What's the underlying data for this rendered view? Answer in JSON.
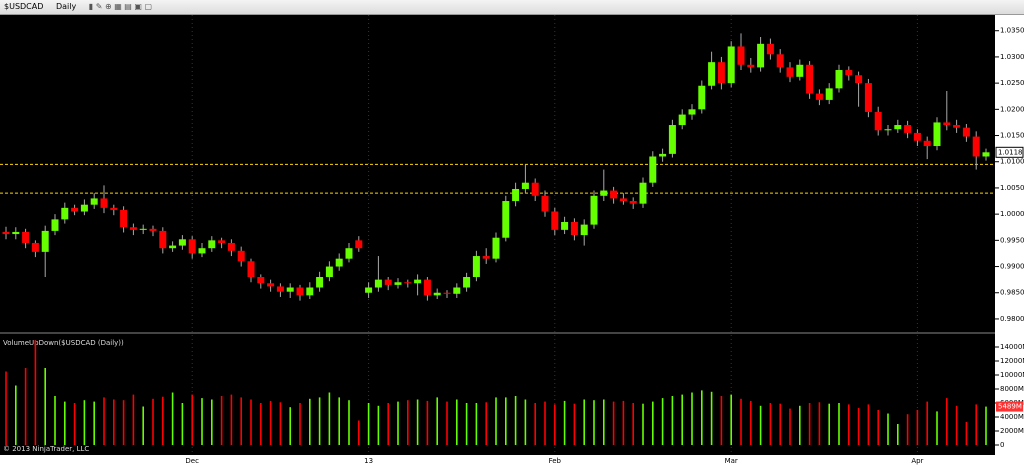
{
  "toolbar": {
    "symbol": "$USDCAD",
    "interval": "Daily"
  },
  "copyright": "© 2013 NinjaTrader, LLC",
  "chart_data": [
    {
      "type": "candlestick",
      "categories": [
        null,
        null,
        null,
        null,
        null,
        null,
        null,
        null,
        null,
        null,
        null,
        null,
        null,
        null,
        null,
        null,
        null,
        null,
        null,
        "Dec",
        null,
        null,
        null,
        null,
        null,
        null,
        null,
        null,
        null,
        null,
        null,
        null,
        null,
        null,
        null,
        null,
        null,
        "13",
        null,
        null,
        null,
        null,
        null,
        null,
        null,
        null,
        null,
        null,
        null,
        null,
        null,
        null,
        null,
        null,
        null,
        null,
        "Feb",
        null,
        null,
        null,
        null,
        null,
        null,
        null,
        null,
        null,
        null,
        null,
        null,
        null,
        null,
        null,
        null,
        null,
        "Mar",
        null,
        null,
        null,
        null,
        null,
        null,
        null,
        null,
        null,
        null,
        null,
        null,
        null,
        null,
        null,
        null,
        null,
        null,
        "Apr",
        null,
        null,
        null,
        null,
        null,
        null,
        null
      ],
      "ohlc": [
        [
          0.9966,
          0.9976,
          0.9952,
          0.9962
        ],
        [
          0.9962,
          0.9975,
          0.9952,
          0.9966
        ],
        [
          0.9966,
          0.9972,
          0.9935,
          0.9945
        ],
        [
          0.9945,
          0.995,
          0.9918,
          0.9928
        ],
        [
          0.9928,
          0.9978,
          0.988,
          0.9968
        ],
        [
          0.9968,
          1.0,
          0.996,
          0.999
        ],
        [
          0.999,
          1.0022,
          0.9982,
          1.0012
        ],
        [
          1.0012,
          1.0018,
          0.9998,
          1.0005
        ],
        [
          1.0005,
          1.0028,
          0.9998,
          1.0018
        ],
        [
          1.0018,
          1.004,
          1.001,
          1.003
        ],
        [
          1.003,
          1.0055,
          1.0002,
          1.0012
        ],
        [
          1.0012,
          1.0018,
          0.9998,
          1.0008
        ],
        [
          1.0008,
          1.0015,
          0.9965,
          0.9975
        ],
        [
          0.9975,
          0.9982,
          0.996,
          0.997
        ],
        [
          0.997,
          0.998,
          0.9962,
          0.9972
        ],
        [
          0.9972,
          0.9978,
          0.9958,
          0.9968
        ],
        [
          0.9968,
          0.9975,
          0.9925,
          0.9935
        ],
        [
          0.9935,
          0.9948,
          0.9928,
          0.994
        ],
        [
          0.994,
          0.996,
          0.9932,
          0.9952
        ],
        [
          0.9952,
          0.9958,
          0.9915,
          0.9925
        ],
        [
          0.9925,
          0.9945,
          0.9918,
          0.9935
        ],
        [
          0.9935,
          0.9958,
          0.9928,
          0.995
        ],
        [
          0.995,
          0.9955,
          0.9935,
          0.9945
        ],
        [
          0.9945,
          0.9952,
          0.992,
          0.993
        ],
        [
          0.993,
          0.9938,
          0.99,
          0.991
        ],
        [
          0.991,
          0.9915,
          0.987,
          0.988
        ],
        [
          0.988,
          0.9885,
          0.9858,
          0.9868
        ],
        [
          0.9868,
          0.9875,
          0.9852,
          0.9862
        ],
        [
          0.9862,
          0.9868,
          0.9842,
          0.9852
        ],
        [
          0.9852,
          0.9868,
          0.984,
          0.986
        ],
        [
          0.986,
          0.9865,
          0.9835,
          0.9845
        ],
        [
          0.9845,
          0.987,
          0.9838,
          0.986
        ],
        [
          0.986,
          0.989,
          0.9852,
          0.988
        ],
        [
          0.988,
          0.991,
          0.9872,
          0.99
        ],
        [
          0.99,
          0.9925,
          0.9892,
          0.9915
        ],
        [
          0.9915,
          0.9945,
          0.9908,
          0.9935
        ],
        [
          0.995,
          0.9958,
          0.9928,
          0.9935
        ],
        [
          0.985,
          0.987,
          0.984,
          0.986
        ],
        [
          0.986,
          0.992,
          0.9852,
          0.9875
        ],
        [
          0.9875,
          0.988,
          0.9855,
          0.9865
        ],
        [
          0.9865,
          0.9878,
          0.9858,
          0.987
        ],
        [
          0.987,
          0.9875,
          0.986,
          0.9868
        ],
        [
          0.9868,
          0.9885,
          0.9845,
          0.9875
        ],
        [
          0.9875,
          0.988,
          0.9835,
          0.9845
        ],
        [
          0.9845,
          0.9858,
          0.9838,
          0.985
        ],
        [
          0.985,
          0.9855,
          0.984,
          0.9848
        ],
        [
          0.9848,
          0.9868,
          0.984,
          0.986
        ],
        [
          0.986,
          0.9888,
          0.9852,
          0.988
        ],
        [
          0.988,
          0.993,
          0.9872,
          0.992
        ],
        [
          0.992,
          0.9935,
          0.9905,
          0.9915
        ],
        [
          0.9915,
          0.9965,
          0.9908,
          0.9955
        ],
        [
          0.9955,
          1.0035,
          0.9948,
          1.0025
        ],
        [
          1.0025,
          1.006,
          1.0015,
          1.0048
        ],
        [
          1.0048,
          1.0095,
          1.004,
          1.006
        ],
        [
          1.006,
          1.0068,
          1.0025,
          1.0035
        ],
        [
          1.0035,
          1.0045,
          0.9995,
          1.0005
        ],
        [
          1.0005,
          1.0012,
          0.996,
          0.997
        ],
        [
          0.997,
          0.9995,
          0.9962,
          0.9985
        ],
        [
          0.9985,
          0.9992,
          0.995,
          0.996
        ],
        [
          0.996,
          0.999,
          0.994,
          0.998
        ],
        [
          0.998,
          1.0045,
          0.9972,
          1.0035
        ],
        [
          1.0035,
          1.0085,
          1.0025,
          1.0045
        ],
        [
          1.0045,
          1.0052,
          1.002,
          1.003
        ],
        [
          1.003,
          1.004,
          1.0018,
          1.0025
        ],
        [
          1.0025,
          1.0032,
          1.001,
          1.002
        ],
        [
          1.002,
          1.007,
          1.0012,
          1.006
        ],
        [
          1.006,
          1.012,
          1.0052,
          1.011
        ],
        [
          1.011,
          1.0125,
          1.01,
          1.0115
        ],
        [
          1.0115,
          1.018,
          1.0108,
          1.017
        ],
        [
          1.017,
          1.02,
          1.0162,
          1.019
        ],
        [
          1.019,
          1.021,
          1.018,
          1.02
        ],
        [
          1.02,
          1.0255,
          1.0192,
          1.0245
        ],
        [
          1.0245,
          1.031,
          1.0238,
          1.029
        ],
        [
          1.029,
          1.03,
          1.0238,
          1.025
        ],
        [
          1.025,
          1.033,
          1.0242,
          1.032
        ],
        [
          1.032,
          1.0345,
          1.0275,
          1.0285
        ],
        [
          1.0285,
          1.0298,
          1.027,
          1.028
        ],
        [
          1.028,
          1.0338,
          1.0272,
          1.0325
        ],
        [
          1.0325,
          1.0335,
          1.0295,
          1.0305
        ],
        [
          1.0305,
          1.0315,
          1.027,
          1.028
        ],
        [
          1.028,
          1.029,
          1.0252,
          1.0262
        ],
        [
          1.0262,
          1.0295,
          1.0255,
          1.0285
        ],
        [
          1.0285,
          1.0292,
          1.022,
          1.023
        ],
        [
          1.023,
          1.0238,
          1.0208,
          1.0218
        ],
        [
          1.0218,
          1.025,
          1.021,
          1.024
        ],
        [
          1.024,
          1.0285,
          1.0232,
          1.0275
        ],
        [
          1.0275,
          1.0282,
          1.0255,
          1.0265
        ],
        [
          1.0265,
          1.0272,
          1.0205,
          1.025
        ],
        [
          1.025,
          1.0258,
          1.0185,
          1.0195
        ],
        [
          1.0195,
          1.0205,
          1.015,
          1.016
        ],
        [
          1.016,
          1.017,
          1.015,
          1.0162
        ],
        [
          1.0162,
          1.018,
          1.0155,
          1.017
        ],
        [
          1.017,
          1.0178,
          1.0145,
          1.0155
        ],
        [
          1.0155,
          1.0162,
          1.013,
          1.014
        ],
        [
          1.014,
          1.0148,
          1.0105,
          1.013
        ],
        [
          1.013,
          1.0185,
          1.0122,
          1.0175
        ],
        [
          1.0175,
          1.0235,
          1.016,
          1.017
        ],
        [
          1.017,
          1.018,
          1.0155,
          1.0165
        ],
        [
          1.0165,
          1.0172,
          1.0138,
          1.0148
        ],
        [
          1.0148,
          1.0158,
          1.0085,
          1.011
        ],
        [
          1.011,
          1.0125,
          1.0102,
          1.0118
        ]
      ],
      "up_color": "#66ff00",
      "down_color": "#ff0000",
      "hlines": [
        1.0095,
        1.004
      ],
      "hline_color": "#ffd700",
      "current_label": "1.0118",
      "ylim": [
        0.9777,
        1.038
      ],
      "yticks": [
        {
          "value": 1.035,
          "label": "1.0350"
        },
        {
          "value": 1.03,
          "label": "1.0300"
        },
        {
          "value": 1.025,
          "label": "1.0250"
        },
        {
          "value": 1.02,
          "label": "1.0200"
        },
        {
          "value": 1.015,
          "label": "1.0150"
        },
        {
          "value": 1.01,
          "label": "1.0100"
        },
        {
          "value": 1.005,
          "label": "1.0050"
        },
        {
          "value": 1.0,
          "label": "1.0000"
        },
        {
          "value": 0.995,
          "label": "0.9950"
        },
        {
          "value": 0.99,
          "label": "0.9900"
        },
        {
          "value": 0.985,
          "label": "0.9850"
        },
        {
          "value": 0.98,
          "label": "0.9800"
        }
      ]
    },
    {
      "type": "volume",
      "title": "VolumeUpDown($USDCAD (Daily))",
      "values": [
        10500,
        8500,
        11000,
        15000,
        11000,
        7000,
        6200,
        6000,
        6400,
        6200,
        6800,
        6500,
        6400,
        7200,
        5500,
        6600,
        6900,
        7500,
        6000,
        7200,
        6700,
        6500,
        7000,
        7200,
        6800,
        6500,
        6000,
        6300,
        6100,
        5400,
        6000,
        6600,
        6800,
        7500,
        6800,
        6400,
        3500,
        6000,
        5600,
        6000,
        6200,
        6400,
        6500,
        6300,
        6800,
        6200,
        6500,
        6000,
        6000,
        6100,
        6800,
        6800,
        7000,
        6500,
        6000,
        6200,
        5800,
        6300,
        5900,
        6500,
        6400,
        6500,
        6200,
        6300,
        6000,
        5900,
        6200,
        6700,
        7000,
        7200,
        7500,
        7800,
        7600,
        7000,
        7200,
        6600,
        6300,
        5600,
        6000,
        5900,
        5200,
        5600,
        6000,
        6100,
        5900,
        6000,
        5800,
        5300,
        5800,
        5000,
        4500,
        3000,
        4400,
        5000,
        6200,
        4800,
        6700,
        5600,
        3300,
        5800,
        5489
      ],
      "current_label": "5489M",
      "ylim": [
        -1000,
        15570
      ],
      "yticks": [
        {
          "value": 14000,
          "label": "14000M"
        },
        {
          "value": 12000,
          "label": "12000M"
        },
        {
          "value": 10000,
          "label": "10000M"
        },
        {
          "value": 8000,
          "label": "8000M"
        },
        {
          "value": 6000,
          "label": "6000M"
        },
        {
          "value": 4000,
          "label": "4000M"
        },
        {
          "value": 2000,
          "label": "2000M"
        },
        0
      ]
    }
  ]
}
